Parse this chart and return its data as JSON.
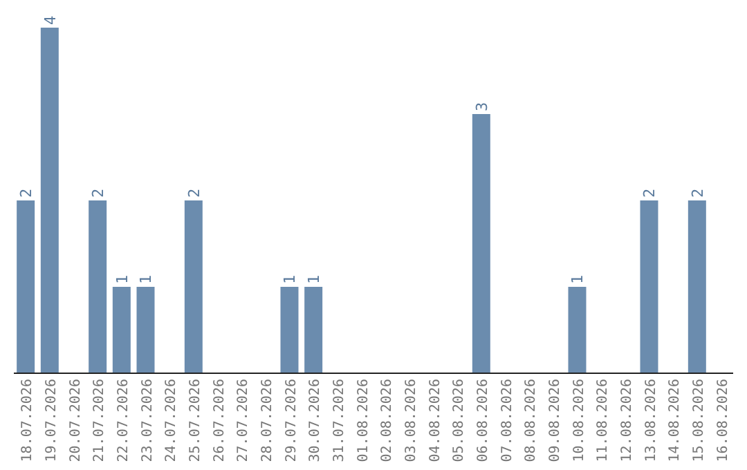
{
  "chart_data": {
    "type": "bar",
    "categories": [
      "18.07.2026",
      "19.07.2026",
      "20.07.2026",
      "21.07.2026",
      "22.07.2026",
      "23.07.2026",
      "24.07.2026",
      "25.07.2026",
      "26.07.2026",
      "27.07.2026",
      "28.07.2026",
      "29.07.2026",
      "30.07.2026",
      "31.07.2026",
      "01.08.2026",
      "02.08.2026",
      "03.08.2026",
      "04.08.2026",
      "05.08.2026",
      "06.08.2026",
      "07.08.2026",
      "08.08.2026",
      "09.08.2026",
      "10.08.2026",
      "11.08.2026",
      "12.08.2026",
      "13.08.2026",
      "14.08.2026",
      "15.08.2026",
      "16.08.2026"
    ],
    "values": [
      2,
      4,
      0,
      2,
      1,
      1,
      0,
      2,
      0,
      0,
      0,
      1,
      1,
      0,
      0,
      0,
      0,
      0,
      0,
      3,
      0,
      0,
      0,
      1,
      0,
      0,
      2,
      0,
      2,
      0
    ],
    "value_labels": [
      "2",
      "4",
      null,
      "2",
      "1",
      "1",
      null,
      "2",
      null,
      null,
      null,
      "1",
      "1",
      null,
      null,
      null,
      null,
      null,
      null,
      "3",
      null,
      null,
      null,
      "1",
      null,
      null,
      "2",
      null,
      "2",
      null
    ],
    "color": "#6b8cae",
    "grid": false,
    "legend": false,
    "tick_labels": "x"
  }
}
